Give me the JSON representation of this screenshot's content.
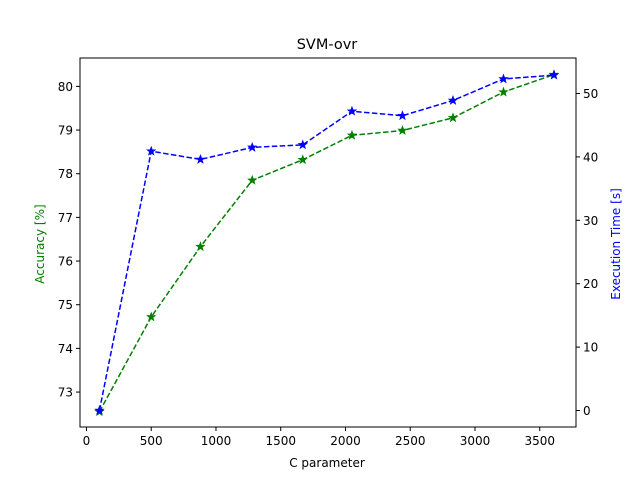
{
  "chart_data": {
    "type": "line",
    "title": "SVM-ovr",
    "xlabel": "C parameter",
    "ylabel_left": "Accuracy [%]",
    "ylabel_right": "Execution Time [s]",
    "x": [
      100,
      500,
      880,
      1280,
      1670,
      2050,
      2440,
      2830,
      3220,
      3610
    ],
    "xlim": [
      -50,
      3780
    ],
    "xticks": [
      0,
      500,
      1000,
      1500,
      2000,
      2500,
      3000,
      3500
    ],
    "ylim_left": [
      72.2,
      80.65
    ],
    "yticks_left": [
      73,
      74,
      75,
      76,
      77,
      78,
      79,
      80
    ],
    "ylim_right": [
      -2.6,
      55.6
    ],
    "yticks_right": [
      0,
      10,
      20,
      30,
      40,
      50
    ],
    "grid": false,
    "series": [
      {
        "axis": "left",
        "color": "#008000",
        "marker": "star",
        "linestyle": "dashed",
        "values": [
          72.55,
          74.72,
          76.33,
          77.85,
          78.32,
          78.88,
          78.99,
          79.28,
          79.87,
          80.27
        ]
      },
      {
        "axis": "right",
        "color": "#0000ff",
        "marker": "star",
        "linestyle": "dashed",
        "values": [
          0.0,
          40.9,
          39.6,
          41.5,
          41.9,
          47.2,
          46.5,
          48.9,
          52.3,
          52.9
        ]
      }
    ]
  }
}
